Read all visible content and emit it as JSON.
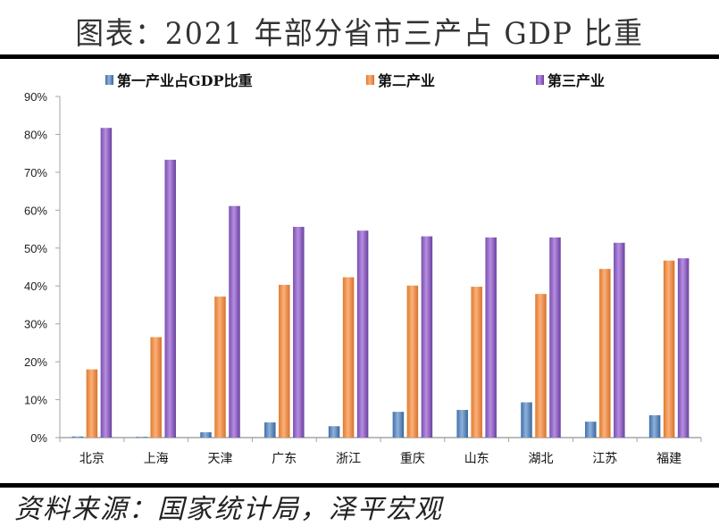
{
  "header": {
    "title": "图表：2021 年部分省市三产占 GDP 比重"
  },
  "footer": {
    "source": "资料来源：国家统计局，泽平宏观"
  },
  "chart_data": {
    "type": "bar",
    "title": "图表：2021 年部分省市三产占 GDP 比重",
    "xlabel": "",
    "ylabel": "",
    "ylim": [
      0,
      90
    ],
    "yticks": [
      0,
      10,
      20,
      30,
      40,
      50,
      60,
      70,
      80,
      90
    ],
    "ytick_labels": [
      "0%",
      "10%",
      "20%",
      "30%",
      "40%",
      "50%",
      "60%",
      "70%",
      "80%",
      "90%"
    ],
    "grid": false,
    "legend_position": "top",
    "categories": [
      "北京",
      "上海",
      "天津",
      "广东",
      "浙江",
      "重庆",
      "山东",
      "湖北",
      "江苏",
      "福建"
    ],
    "series": [
      {
        "name": "第一产业占GDP比重",
        "color": "#4F81BD",
        "values": [
          0.3,
          0.2,
          1.4,
          4.0,
          3.0,
          6.8,
          7.3,
          9.3,
          4.2,
          5.9
        ]
      },
      {
        "name": "第二产业",
        "color": "#F79646",
        "values": [
          18.0,
          26.5,
          37.2,
          40.3,
          42.3,
          40.1,
          39.8,
          37.9,
          44.5,
          46.7
        ]
      },
      {
        "name": "第三产业",
        "color": "#8064A2",
        "values": [
          81.7,
          73.3,
          61.1,
          55.6,
          54.6,
          53.1,
          52.8,
          52.8,
          51.4,
          47.3
        ]
      }
    ]
  }
}
